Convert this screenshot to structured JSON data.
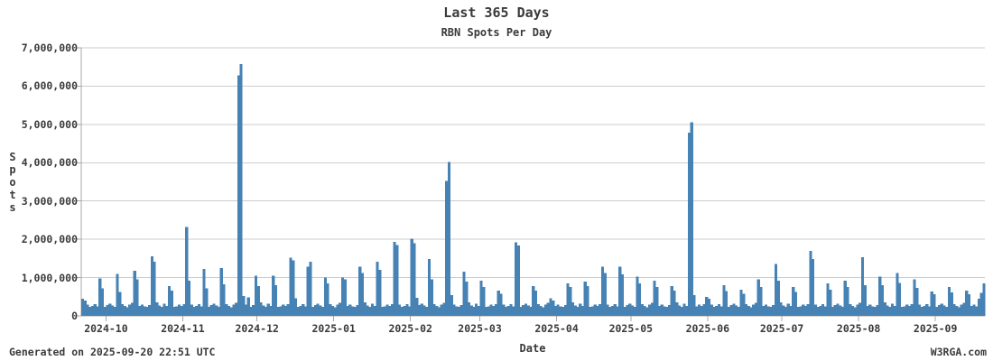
{
  "chart_data": {
    "type": "bar",
    "title": "Last 365 Days",
    "subtitle": "RBN Spots Per Day",
    "xlabel": "Date",
    "ylabel": "Spots",
    "ylim": [
      0,
      7000000
    ],
    "ytick_step": 1000000,
    "ytick_labels": [
      "0",
      "1,000,000",
      "2,000,000",
      "3,000,000",
      "4,000,000",
      "5,000,000",
      "6,000,000",
      "7,000,000"
    ],
    "xtick_labels": [
      "2024-10",
      "2024-11",
      "2024-12",
      "2025-01",
      "2025-02",
      "2025-03",
      "2025-04",
      "2025-05",
      "2025-06",
      "2025-07",
      "2025-08",
      "2025-09"
    ],
    "xtick_day_offsets": [
      10,
      41,
      71,
      102,
      133,
      161,
      192,
      222,
      253,
      283,
      314,
      345
    ],
    "x_start_date": "2024-09-21",
    "x_end_date": "2025-09-20",
    "grid": true,
    "legend": "none",
    "colors": {
      "bar": "#4682b4",
      "grid": "#cccccc",
      "axis": "#a8a8a8",
      "text": "#3a3a3a"
    },
    "values": [
      450000,
      400000,
      290000,
      230000,
      260000,
      310000,
      250000,
      980000,
      720000,
      240000,
      280000,
      320000,
      270000,
      230000,
      1100000,
      620000,
      310000,
      260000,
      220000,
      290000,
      340000,
      1180000,
      950000,
      260000,
      300000,
      250000,
      230000,
      280000,
      1550000,
      1420000,
      350000,
      270000,
      240000,
      320000,
      260000,
      780000,
      660000,
      230000,
      250000,
      300000,
      260000,
      310000,
      2320000,
      920000,
      290000,
      230000,
      260000,
      310000,
      250000,
      1220000,
      720000,
      240000,
      280000,
      320000,
      270000,
      230000,
      1250000,
      820000,
      310000,
      260000,
      220000,
      290000,
      340000,
      6280000,
      6580000,
      520000,
      300000,
      480000,
      230000,
      280000,
      1050000,
      780000,
      350000,
      270000,
      240000,
      320000,
      260000,
      1050000,
      800000,
      230000,
      250000,
      300000,
      260000,
      310000,
      1520000,
      1450000,
      460000,
      230000,
      260000,
      310000,
      250000,
      1280000,
      1420000,
      240000,
      280000,
      320000,
      270000,
      230000,
      1000000,
      850000,
      310000,
      260000,
      220000,
      290000,
      340000,
      1000000,
      950000,
      260000,
      300000,
      250000,
      230000,
      280000,
      1280000,
      1120000,
      350000,
      270000,
      240000,
      320000,
      260000,
      1420000,
      1200000,
      230000,
      250000,
      300000,
      260000,
      310000,
      1930000,
      1850000,
      290000,
      230000,
      260000,
      310000,
      250000,
      2020000,
      1900000,
      470000,
      280000,
      320000,
      270000,
      230000,
      1480000,
      950000,
      310000,
      260000,
      220000,
      290000,
      340000,
      3520000,
      4020000,
      540000,
      300000,
      250000,
      230000,
      280000,
      1150000,
      900000,
      350000,
      270000,
      240000,
      320000,
      260000,
      920000,
      750000,
      230000,
      250000,
      300000,
      260000,
      310000,
      660000,
      580000,
      290000,
      230000,
      260000,
      310000,
      250000,
      1920000,
      1840000,
      240000,
      280000,
      320000,
      270000,
      230000,
      780000,
      660000,
      310000,
      260000,
      220000,
      290000,
      340000,
      460000,
      400000,
      260000,
      300000,
      250000,
      230000,
      280000,
      850000,
      750000,
      350000,
      270000,
      240000,
      320000,
      260000,
      900000,
      780000,
      230000,
      250000,
      300000,
      260000,
      310000,
      1280000,
      1120000,
      290000,
      230000,
      260000,
      310000,
      250000,
      1280000,
      1080000,
      240000,
      280000,
      320000,
      270000,
      230000,
      1020000,
      850000,
      310000,
      260000,
      220000,
      290000,
      340000,
      920000,
      760000,
      260000,
      300000,
      250000,
      230000,
      280000,
      780000,
      660000,
      350000,
      270000,
      240000,
      320000,
      260000,
      4790000,
      5060000,
      540000,
      250000,
      300000,
      260000,
      310000,
      500000,
      450000,
      290000,
      230000,
      260000,
      310000,
      250000,
      800000,
      650000,
      240000,
      280000,
      320000,
      270000,
      230000,
      680000,
      580000,
      310000,
      260000,
      220000,
      290000,
      340000,
      950000,
      750000,
      260000,
      300000,
      250000,
      230000,
      280000,
      1350000,
      920000,
      350000,
      270000,
      240000,
      320000,
      260000,
      750000,
      620000,
      230000,
      250000,
      300000,
      260000,
      310000,
      1700000,
      1480000,
      290000,
      230000,
      260000,
      310000,
      250000,
      850000,
      680000,
      240000,
      280000,
      320000,
      270000,
      230000,
      920000,
      750000,
      310000,
      260000,
      220000,
      290000,
      340000,
      1530000,
      800000,
      260000,
      300000,
      250000,
      230000,
      280000,
      1020000,
      800000,
      350000,
      270000,
      240000,
      320000,
      260000,
      1120000,
      860000,
      230000,
      250000,
      300000,
      260000,
      310000,
      960000,
      730000,
      290000,
      230000,
      260000,
      310000,
      250000,
      640000,
      560000,
      240000,
      280000,
      320000,
      270000,
      230000,
      750000,
      610000,
      310000,
      260000,
      220000,
      290000,
      340000,
      660000,
      560000,
      260000,
      300000,
      250000,
      450000,
      600000,
      850000
    ]
  },
  "footer": {
    "generated": "Generated on 2025-09-20 22:51 UTC",
    "site": "W3RGA.com"
  }
}
